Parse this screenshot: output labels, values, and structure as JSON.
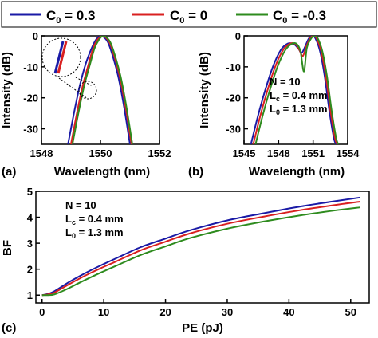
{
  "legend": {
    "items": [
      {
        "label_main": "C",
        "label_sub": "0",
        "label_rest": " = 0.3",
        "color": "#1a1aa6"
      },
      {
        "label_main": "C",
        "label_sub": "0",
        "label_rest": " = 0",
        "color": "#d92020"
      },
      {
        "label_main": "C",
        "label_sub": "0",
        "label_rest": " = -0.3",
        "color": "#2e8b1e"
      }
    ]
  },
  "chart_data": [
    {
      "panel": "(a)",
      "type": "line",
      "xlabel": "Wavelength (nm)",
      "ylabel": "Intensity (dB)",
      "xlim": [
        1548,
        1552
      ],
      "ylim": [
        -35,
        0
      ],
      "xticks": [
        1548,
        1550,
        1552
      ],
      "yticks": [
        0,
        -10,
        -20,
        -30
      ],
      "series": [
        {
          "name": "C0 = 0.3",
          "x": [
            1548.9,
            1549.1,
            1549.3,
            1549.5,
            1549.7,
            1549.85,
            1550.0,
            1550.1,
            1550.25,
            1550.4,
            1550.6,
            1550.8,
            1551.0
          ],
          "values": [
            -35,
            -25,
            -16,
            -9,
            -4,
            -1.2,
            0,
            -0.3,
            -2,
            -6,
            -13,
            -23,
            -35
          ]
        },
        {
          "name": "C0 = 0",
          "x": [
            1549.0,
            1549.2,
            1549.4,
            1549.6,
            1549.75,
            1549.9,
            1550.05,
            1550.15,
            1550.3,
            1550.45,
            1550.65,
            1550.85,
            1551.05
          ],
          "values": [
            -35,
            -25,
            -16,
            -9,
            -4,
            -1.2,
            0,
            -0.3,
            -2,
            -6,
            -13,
            -23,
            -35
          ]
        },
        {
          "name": "C0 = -0.3",
          "x": [
            1549.05,
            1549.25,
            1549.45,
            1549.65,
            1549.8,
            1549.95,
            1550.08,
            1550.18,
            1550.33,
            1550.48,
            1550.68,
            1550.88,
            1551.08
          ],
          "values": [
            -35,
            -25,
            -16,
            -9,
            -4,
            -1.2,
            0,
            -0.3,
            -2,
            -6,
            -13,
            -23,
            -35
          ]
        }
      ]
    },
    {
      "panel": "(b)",
      "type": "line",
      "xlabel": "Wavelength (nm)",
      "ylabel": "Intensity (dB)",
      "xlim": [
        1545,
        1554
      ],
      "ylim": [
        -35,
        0
      ],
      "xticks": [
        1545,
        1548,
        1551,
        1554
      ],
      "yticks": [
        0,
        -10,
        -20,
        -30
      ],
      "annotation": {
        "n": "N = 10",
        "lc_main": "L",
        "lc_sub": "c",
        "lc_rest": " = 0.4 mm",
        "l0_main": "L",
        "l0_sub": "0",
        "l0_rest": " = 1.3 mm"
      },
      "series": [
        {
          "name": "C0 = 0.3",
          "x": [
            1545.6,
            1546.2,
            1546.8,
            1547.5,
            1548.2,
            1548.8,
            1549.3,
            1549.7,
            1550.0,
            1550.3,
            1550.6,
            1550.9,
            1551.2,
            1551.6,
            1552.0,
            1552.4,
            1552.8,
            1553.0
          ],
          "values": [
            -35,
            -26,
            -18,
            -10,
            -4.5,
            -2.5,
            -2.6,
            -4,
            -5.5,
            -3.5,
            -1,
            0,
            -0.8,
            -5,
            -13,
            -24,
            -33,
            -35
          ]
        },
        {
          "name": "C0 = 0",
          "x": [
            1545.8,
            1546.4,
            1547.0,
            1547.7,
            1548.4,
            1549.0,
            1549.45,
            1549.8,
            1550.1,
            1550.4,
            1550.7,
            1551.0,
            1551.3,
            1551.7,
            1552.1,
            1552.5,
            1552.9,
            1553.1
          ],
          "values": [
            -35,
            -26,
            -18,
            -10,
            -4.5,
            -2.5,
            -2.6,
            -4.5,
            -6.5,
            -3.5,
            -1,
            0,
            -0.8,
            -5,
            -13,
            -24,
            -33,
            -35
          ]
        },
        {
          "name": "C0 = -0.3",
          "x": [
            1546.0,
            1546.6,
            1547.2,
            1547.9,
            1548.6,
            1549.2,
            1549.6,
            1549.9,
            1550.2,
            1550.45,
            1550.8,
            1551.1,
            1551.4,
            1551.8,
            1552.2,
            1552.6,
            1553.0,
            1553.2
          ],
          "values": [
            -35,
            -26,
            -18,
            -10,
            -4.5,
            -2.5,
            -2.7,
            -5,
            -11.5,
            -4,
            -1,
            0,
            -0.8,
            -5,
            -13,
            -24,
            -33,
            -35
          ]
        }
      ]
    },
    {
      "panel": "(c)",
      "type": "line",
      "xlabel": "PE (pJ)",
      "ylabel": "BF",
      "xlim": [
        -1,
        53
      ],
      "ylim": [
        0.7,
        5
      ],
      "xticks": [
        0,
        10,
        20,
        30,
        40,
        50
      ],
      "yticks": [
        1,
        2,
        3,
        4,
        5
      ],
      "annotation": {
        "n": "N = 10",
        "lc_main": "L",
        "lc_sub": "c",
        "lc_rest": " = 0.4 mm",
        "l0_main": "L",
        "l0_sub": "0",
        "l0_rest": " = 1.3 mm"
      },
      "series": [
        {
          "name": "C0 = 0.3",
          "x": [
            0,
            1,
            2,
            4,
            6,
            8,
            10,
            12,
            16,
            20,
            24,
            30,
            36,
            42,
            48,
            51.5
          ],
          "values": [
            1.0,
            1.05,
            1.15,
            1.45,
            1.72,
            1.97,
            2.2,
            2.42,
            2.85,
            3.18,
            3.5,
            3.88,
            4.16,
            4.42,
            4.64,
            4.76
          ]
        },
        {
          "name": "C0 = 0",
          "x": [
            0,
            1,
            2,
            4,
            6,
            8,
            10,
            12,
            16,
            20,
            24,
            30,
            36,
            42,
            48,
            51.5
          ],
          "values": [
            1.0,
            1.03,
            1.1,
            1.37,
            1.63,
            1.87,
            2.09,
            2.3,
            2.73,
            3.06,
            3.38,
            3.75,
            4.03,
            4.28,
            4.49,
            4.6
          ]
        },
        {
          "name": "C0 = -0.3",
          "x": [
            0,
            1,
            2,
            4,
            6,
            8,
            10,
            12,
            16,
            20,
            24,
            30,
            36,
            42,
            48,
            51.5
          ],
          "values": [
            1.0,
            1.0,
            1.03,
            1.23,
            1.47,
            1.7,
            1.92,
            2.13,
            2.55,
            2.88,
            3.2,
            3.56,
            3.84,
            4.08,
            4.28,
            4.38
          ]
        }
      ]
    }
  ]
}
